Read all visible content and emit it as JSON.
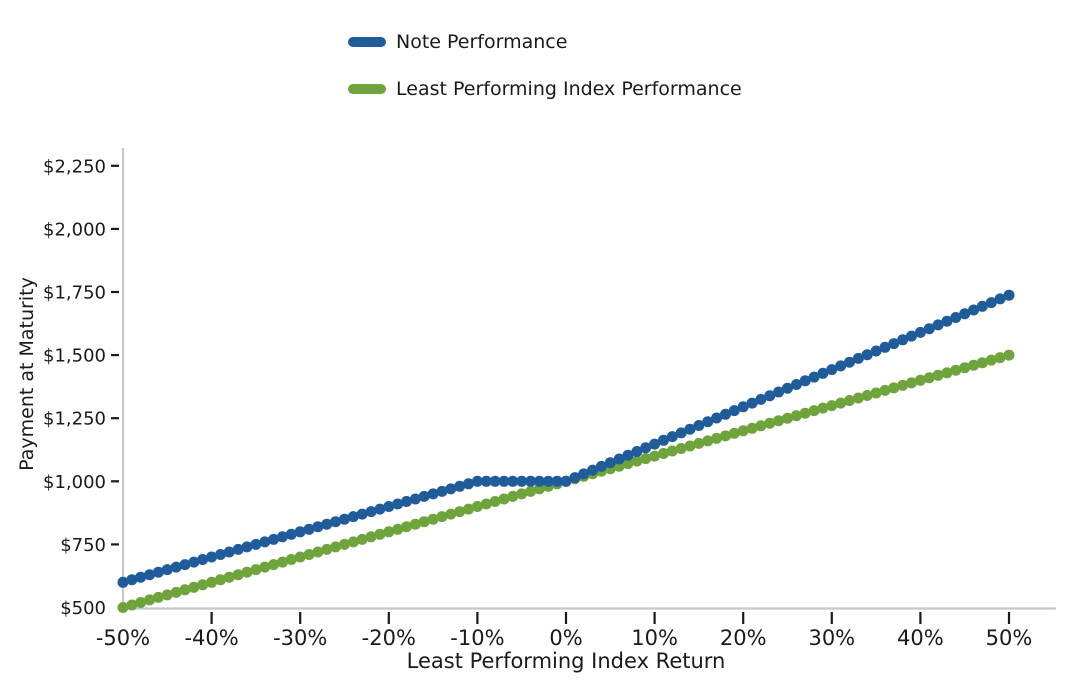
{
  "legend": {
    "items": [
      {
        "label": "Note Performance",
        "color": "#1F5C99"
      },
      {
        "label": "Least Performing Index Performance",
        "color": "#6FA33C"
      }
    ]
  },
  "chart_data": {
    "type": "line",
    "title": "",
    "xlabel": "Least Performing Index Return",
    "ylabel": "Payment at Maturity",
    "grid": false,
    "legend_position": "top-center",
    "xlim": [
      -0.5,
      0.553
    ],
    "ylim": [
      500,
      2320
    ],
    "x_ticks": [
      {
        "value": -0.5,
        "label": "-50%"
      },
      {
        "value": -0.4,
        "label": "-40%"
      },
      {
        "value": -0.3,
        "label": "-30%"
      },
      {
        "value": -0.2,
        "label": "-20%"
      },
      {
        "value": -0.1,
        "label": "-10%"
      },
      {
        "value": 0.0,
        "label": "0%"
      },
      {
        "value": 0.1,
        "label": "10%"
      },
      {
        "value": 0.2,
        "label": "20%"
      },
      {
        "value": 0.3,
        "label": "30%"
      },
      {
        "value": 0.4,
        "label": "40%"
      },
      {
        "value": 0.5,
        "label": "50%"
      }
    ],
    "y_ticks": [
      {
        "value": 500,
        "label": "$500"
      },
      {
        "value": 750,
        "label": "$750"
      },
      {
        "value": 1000,
        "label": "$1,000"
      },
      {
        "value": 1250,
        "label": "$1,250"
      },
      {
        "value": 1500,
        "label": "$1,500"
      },
      {
        "value": 1750,
        "label": "$1,750"
      },
      {
        "value": 2000,
        "label": "$2,000"
      },
      {
        "value": 2250,
        "label": "$2,250"
      }
    ],
    "marker_step_x": 0.01,
    "series": [
      {
        "name": "Least Performing Index Performance",
        "color": "#6FA33C",
        "keypoints_x": [
          -0.5,
          0.5
        ],
        "keypoints_y": [
          500,
          1500
        ]
      },
      {
        "name": "Note Performance",
        "color": "#1F5C99",
        "keypoints_x": [
          -0.5,
          -0.1,
          0.0,
          0.5
        ],
        "keypoints_y": [
          600,
          1000,
          1000,
          1737.5
        ]
      }
    ]
  }
}
